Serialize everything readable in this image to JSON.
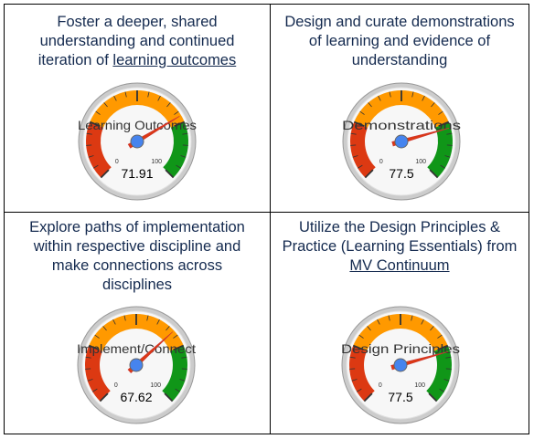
{
  "chart_data": [
    {
      "type": "gauge",
      "title_lines": [
        "Foster a deeper, shared",
        "understanding and continued",
        "iteration of "
      ],
      "title_link": "learning outcomes",
      "label": "Learning Outcomes",
      "value": 71.91,
      "value_text": "71.91",
      "min": 0,
      "max": 100,
      "min_label": "0",
      "max_label": "100"
    },
    {
      "type": "gauge",
      "title_lines": [
        "Design and curate demonstrations",
        "of learning and evidence of",
        "understanding"
      ],
      "title_link": "",
      "label": "Demonstrations",
      "value": 77.5,
      "value_text": "77.5",
      "min": 0,
      "max": 100,
      "min_label": "0",
      "max_label": "100"
    },
    {
      "type": "gauge",
      "title_lines": [
        "Explore paths of implementation",
        "within respective discipline and",
        "make connections across",
        "disciplines"
      ],
      "title_link": "",
      "label": "Implement/Connect",
      "value": 67.62,
      "value_text": "67.62",
      "min": 0,
      "max": 100,
      "min_label": "0",
      "max_label": "100"
    },
    {
      "type": "gauge",
      "title_lines": [
        "Utilize the Design Principles &",
        "Practice (Learning Essentials) from",
        ""
      ],
      "title_link": "MV Continuum",
      "label": "Design Principles",
      "value": 77.5,
      "value_text": "77.5",
      "min": 0,
      "max": 100,
      "min_label": "0",
      "max_label": "100"
    }
  ],
  "colors": {
    "red_band": "#dc3912",
    "orange_band": "#ff9900",
    "green_band": "#109618",
    "needle": "#dc3912",
    "hub": "#4684ee",
    "title_text": "#142a4f"
  }
}
